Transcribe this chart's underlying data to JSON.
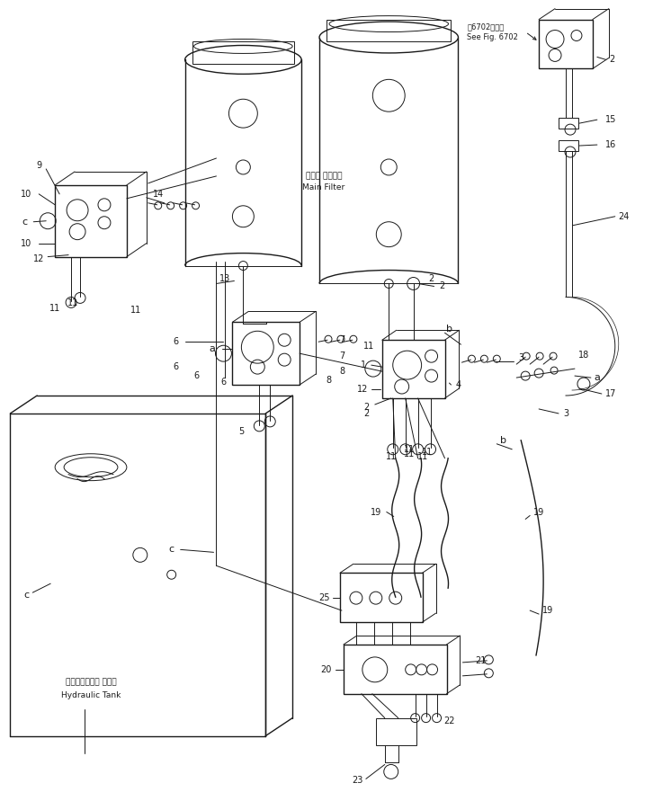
{
  "bg_color": "#ffffff",
  "line_color": "#1a1a1a",
  "fig_width": 7.36,
  "fig_height": 8.81,
  "dpi": 100,
  "title_jp": "第6702図参照",
  "title_en": "See Fig. 6702",
  "filter_label_jp": "メイン フィルタ",
  "filter_label_en": "Main Filter",
  "tank_label_jp": "ハイドロリック タンク",
  "tank_label_en": "Hydraulic Tank"
}
